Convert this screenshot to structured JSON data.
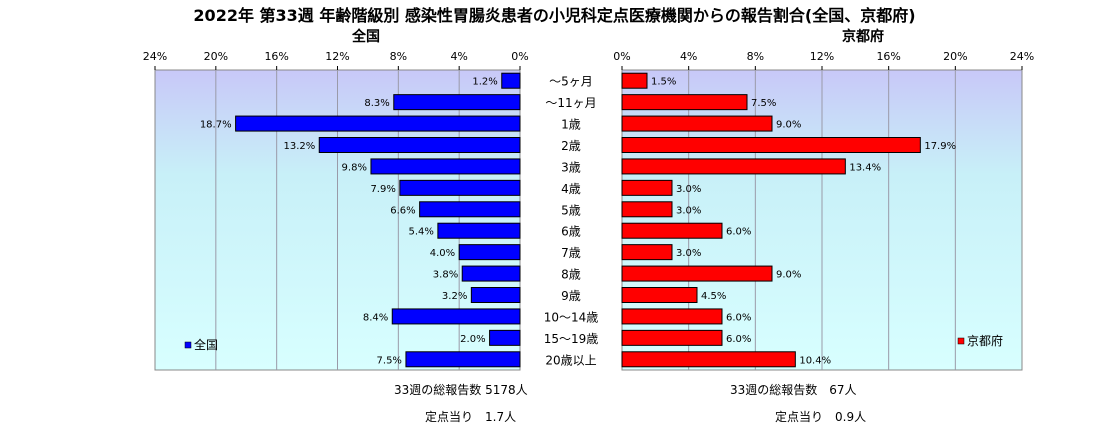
{
  "title": "2022年 第33週  年齢階級別 感染性胃腸炎患者の小児科定点医療機関からの報告割合(全国、京都府)",
  "left_panel_title": "全国",
  "right_panel_title": "京都府",
  "footer": {
    "national_total": "33週の総報告数 5178人",
    "national_per_site": "定点当り　1.7人",
    "kyoto_total": "33週の総報告数　67人",
    "kyoto_per_site": "定点当り　0.9人"
  },
  "colors": {
    "national": "#0000ff",
    "kyoto": "#ff0000"
  },
  "chart_data": {
    "type": "bar",
    "orientation": "horizontal-butterfly",
    "categories": [
      "～5ヶ月",
      "～11ヶ月",
      "1歳",
      "2歳",
      "3歳",
      "4歳",
      "5歳",
      "6歳",
      "7歳",
      "8歳",
      "9歳",
      "10～14歳",
      "15～19歳",
      "20歳以上"
    ],
    "series": [
      {
        "name": "全国",
        "values": [
          1.2,
          8.3,
          18.7,
          13.2,
          9.8,
          7.9,
          6.6,
          5.4,
          4.0,
          3.8,
          3.2,
          8.4,
          2.0,
          7.5
        ],
        "labels": [
          "1.2%",
          "8.3%",
          "18.7%",
          "13.2%",
          "9.8%",
          "7.9%",
          "6.6%",
          "5.4%",
          "4.0%",
          "3.8%",
          "3.2%",
          "8.4%",
          "2.0%",
          "7.5%"
        ]
      },
      {
        "name": "京都府",
        "values": [
          1.5,
          7.5,
          9.0,
          17.9,
          13.4,
          3.0,
          3.0,
          6.0,
          3.0,
          9.0,
          4.5,
          6.0,
          6.0,
          10.4
        ],
        "labels": [
          "1.5%",
          "7.5%",
          "9.0%",
          "17.9%",
          "13.4%",
          "3.0%",
          "3.0%",
          "6.0%",
          "3.0%",
          "9.0%",
          "4.5%",
          "6.0%",
          "6.0%",
          "10.4%"
        ]
      }
    ],
    "xlim": [
      0,
      24
    ],
    "ticks_left": [
      "24%",
      "20%",
      "16%",
      "12%",
      "8%",
      "4%",
      "0%"
    ],
    "ticks_right": [
      "0%",
      "4%",
      "8%",
      "12%",
      "16%",
      "20%",
      "24%"
    ],
    "tick_values": [
      0,
      4,
      8,
      12,
      16,
      20,
      24
    ],
    "grid": true,
    "legend_left": "bottom-left",
    "legend_right": "bottom-right"
  }
}
